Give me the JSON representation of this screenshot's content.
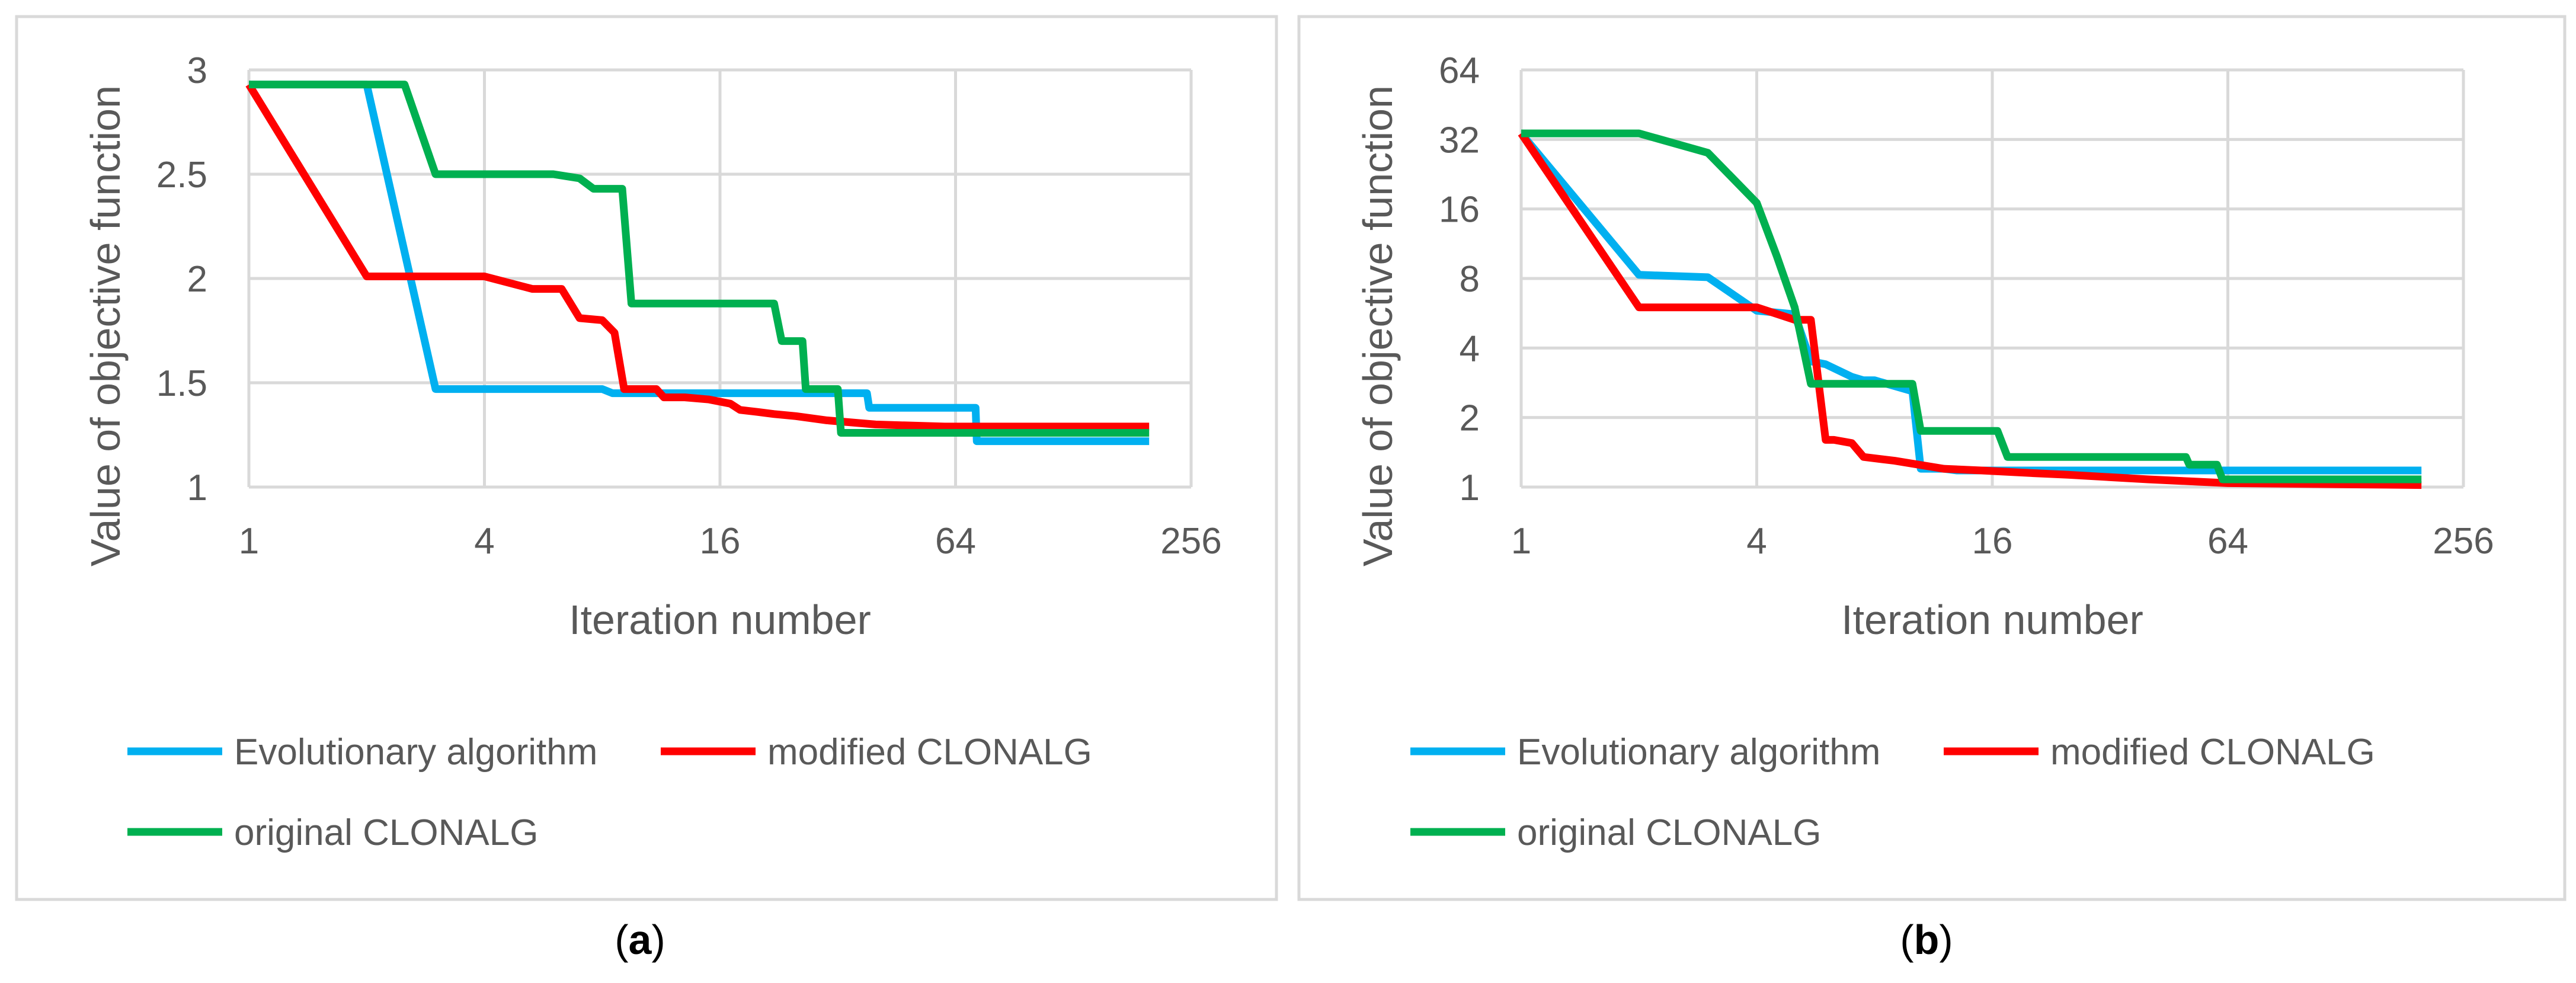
{
  "chart_data": [
    {
      "type": "line",
      "panel_label": "a",
      "xlabel": "Iteration number",
      "ylabel": "Value of objective function",
      "x_scale": "log2",
      "xlim": [
        1,
        256
      ],
      "ylim": [
        1,
        3
      ],
      "x_ticks": [
        "1",
        "4",
        "16",
        "64",
        "256"
      ],
      "x_tick_values": [
        1,
        4,
        16,
        64,
        256
      ],
      "y_ticks": [
        "1",
        "1.5",
        "2",
        "2.5",
        "3"
      ],
      "y_tick_values": [
        1,
        1.5,
        2,
        2.5,
        3
      ],
      "grid": true,
      "legend_position": "bottom",
      "series": [
        {
          "name": "Evolutionary algorithm",
          "color": "#00b0f0",
          "x": [
            1,
            2,
            3,
            8,
            8.5,
            20,
            38,
            38.5,
            72,
            72.5,
            200
          ],
          "y": [
            2.93,
            2.93,
            1.47,
            1.47,
            1.45,
            1.45,
            1.45,
            1.38,
            1.38,
            1.22,
            1.22
          ]
        },
        {
          "name": "modified CLONALG",
          "color": "#ff0000",
          "x": [
            1,
            2,
            4,
            5.3,
            6.3,
            7,
            8,
            8.6,
            9.1,
            11,
            11.5,
            13,
            15,
            17,
            18,
            20,
            22,
            25,
            30,
            40,
            60,
            100,
            200
          ],
          "y": [
            2.93,
            2.01,
            2.01,
            1.95,
            1.95,
            1.81,
            1.8,
            1.74,
            1.47,
            1.47,
            1.43,
            1.43,
            1.42,
            1.4,
            1.37,
            1.36,
            1.35,
            1.34,
            1.32,
            1.3,
            1.29,
            1.29,
            1.29
          ]
        },
        {
          "name": "original CLONALG",
          "color": "#00b050",
          "x": [
            1,
            2.5,
            3,
            6,
            7,
            7.6,
            9,
            9.5,
            22,
            23,
            26,
            26.5,
            32,
            32.6,
            66,
            200
          ],
          "y": [
            2.93,
            2.93,
            2.5,
            2.5,
            2.48,
            2.43,
            2.43,
            1.88,
            1.88,
            1.7,
            1.7,
            1.47,
            1.47,
            1.26,
            1.26,
            1.26
          ]
        }
      ]
    },
    {
      "type": "line",
      "panel_label": "b",
      "xlabel": "Iteration number",
      "ylabel": "Value of objective function",
      "x_scale": "log2",
      "y_scale": "log2",
      "xlim": [
        1,
        256
      ],
      "ylim": [
        1,
        64
      ],
      "x_ticks": [
        "1",
        "4",
        "16",
        "64",
        "256"
      ],
      "x_tick_values": [
        1,
        4,
        16,
        64,
        256
      ],
      "y_ticks": [
        "1",
        "2",
        "4",
        "8",
        "16",
        "32",
        "64"
      ],
      "y_tick_values": [
        1,
        2,
        4,
        8,
        16,
        32,
        64
      ],
      "grid": true,
      "legend_position": "bottom",
      "series": [
        {
          "name": "Evolutionary algorithm",
          "color": "#00b0f0",
          "x": [
            1,
            2,
            3,
            4,
            5,
            5.5,
            6,
            7,
            7.5,
            8,
            10,
            10.5,
            11,
            12,
            13,
            16,
            20,
            30,
            200
          ],
          "y": [
            34,
            8.3,
            8.1,
            5.8,
            5.6,
            3.5,
            3.4,
            3.0,
            2.9,
            2.9,
            2.6,
            1.2,
            1.2,
            1.2,
            1.18,
            1.18,
            1.18,
            1.18,
            1.18
          ]
        },
        {
          "name": "modified CLONALG",
          "color": "#ff0000",
          "x": [
            1,
            2,
            4,
            5,
            5.5,
            6,
            6.3,
            7,
            7.5,
            9,
            12,
            15,
            20,
            25,
            40,
            64,
            200
          ],
          "y": [
            34,
            6,
            6,
            5.3,
            5.3,
            1.6,
            1.6,
            1.55,
            1.35,
            1.3,
            1.2,
            1.18,
            1.15,
            1.13,
            1.08,
            1.04,
            1.02
          ]
        },
        {
          "name": "original CLONALG",
          "color": "#00b050",
          "x": [
            1,
            2,
            3,
            4,
            4.5,
            5,
            5.5,
            6,
            10,
            10.5,
            16.5,
            17.5,
            50,
            51,
            60,
            62,
            200
          ],
          "y": [
            34,
            34,
            28,
            17,
            10,
            6,
            2.8,
            2.8,
            2.8,
            1.75,
            1.75,
            1.35,
            1.35,
            1.25,
            1.25,
            1.08,
            1.08
          ]
        }
      ]
    }
  ]
}
